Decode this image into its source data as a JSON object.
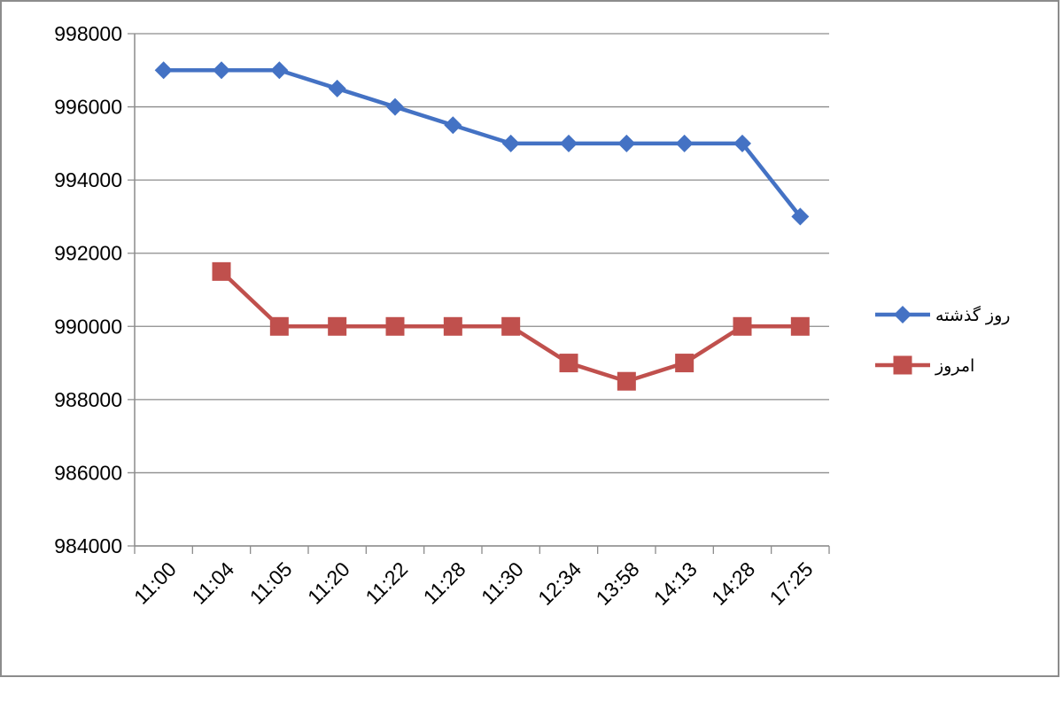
{
  "chart_data": {
    "type": "line",
    "title": "",
    "xlabel": "",
    "ylabel": "",
    "categories": [
      "11:00",
      "11:04",
      "11:05",
      "11:20",
      "11:22",
      "11:28",
      "11:30",
      "12:34",
      "13:58",
      "14:13",
      "14:28",
      "17:25"
    ],
    "ylim": [
      984000,
      998000
    ],
    "yticks": [
      984000,
      986000,
      988000,
      990000,
      992000,
      994000,
      996000,
      998000
    ],
    "grid": true,
    "legend_position": "right",
    "series": [
      {
        "name": "روز گذشته",
        "color": "#4472c4",
        "marker": "diamond",
        "values": [
          997000,
          997000,
          997000,
          996500,
          996000,
          995500,
          995000,
          995000,
          995000,
          995000,
          995000,
          993000
        ]
      },
      {
        "name": "امروز",
        "color": "#c0504d",
        "marker": "square",
        "values": [
          null,
          991500,
          990000,
          990000,
          990000,
          990000,
          990000,
          989000,
          988500,
          989000,
          990000,
          990000
        ]
      }
    ]
  }
}
